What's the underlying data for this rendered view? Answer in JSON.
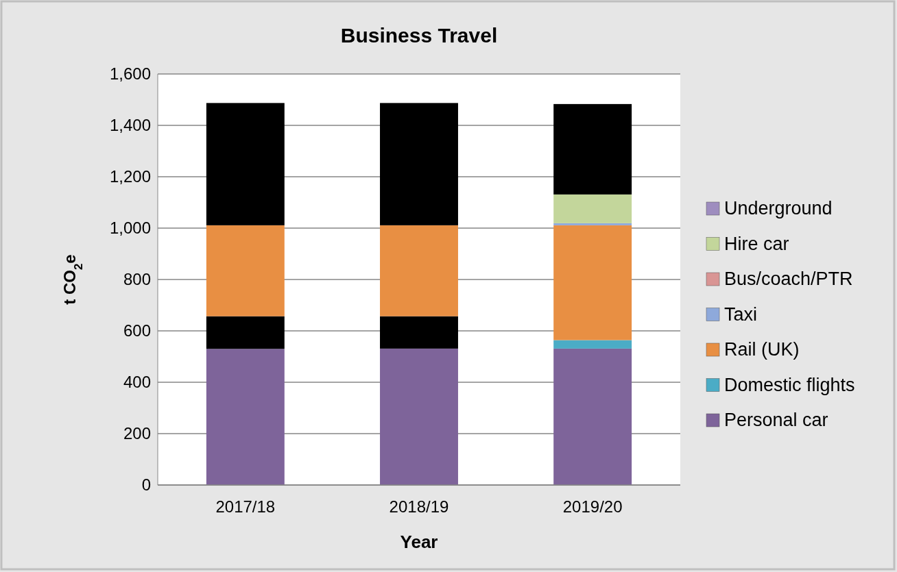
{
  "chart_data": {
    "type": "bar",
    "stacked": true,
    "title": "Business Travel",
    "xlabel": "Year",
    "ylabel": "t CO$_{2}$e",
    "categories": [
      "2017/18",
      "2018/19",
      "2019/20"
    ],
    "series": [
      {
        "name": "Personal car",
        "color": "#7e649a",
        "values": [
          530,
          531,
          531
        ]
      },
      {
        "name": "Domestic flights",
        "color": "#4bacc6",
        "values": [
          0,
          0,
          33
        ]
      },
      {
        "color": "#000000",
        "values": [
          127,
          126,
          0
        ]
      },
      {
        "name": "Rail (UK)",
        "color": "#e88f43",
        "values": [
          354,
          354,
          447
        ]
      },
      {
        "name": "Taxi",
        "color": "#8ea9db",
        "values": [
          0,
          0,
          8
        ]
      },
      {
        "name": "Bus/coach/PTR",
        "color": "#d99594",
        "values": [
          0,
          0,
          null
        ]
      },
      {
        "name": "Hire car",
        "color": "#c3d69b",
        "values": [
          0,
          0,
          112
        ]
      },
      {
        "name": "Underground",
        "color": "#9e8dbf",
        "values": [
          0,
          0,
          null
        ]
      },
      {
        "color": "#000000",
        "values": [
          476,
          476,
          352
        ]
      }
    ],
    "ylim": [
      0,
      1600
    ],
    "yticks": [
      {
        "value": 0,
        "label": "0"
      },
      {
        "value": 200,
        "label": "200"
      },
      {
        "value": 400,
        "label": "400"
      },
      {
        "value": 600,
        "label": "600"
      },
      {
        "value": 800,
        "label": "800"
      },
      {
        "value": 1000,
        "label": "1,000"
      },
      {
        "value": 1200,
        "label": "1,200"
      },
      {
        "value": 1400,
        "label": "1,400"
      },
      {
        "value": 1600,
        "label": "1,600"
      }
    ],
    "grid": "y",
    "legend": "right"
  }
}
